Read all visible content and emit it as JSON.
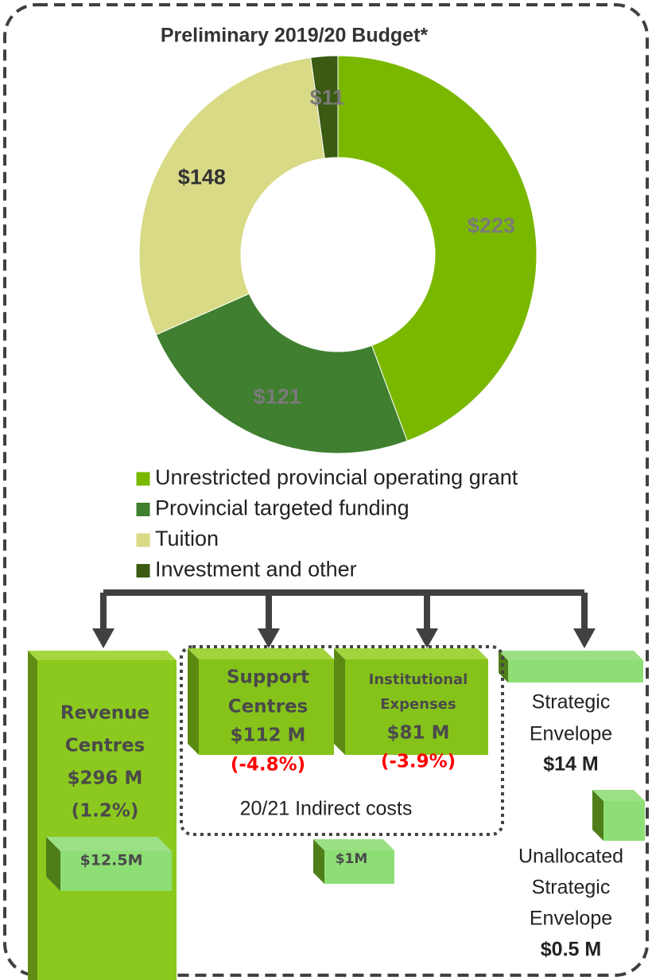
{
  "chart_data": {
    "type": "pie",
    "donut": true,
    "title": "Preliminary 2019/20 Budget*",
    "categories": [
      "Unrestricted provincial operating grant",
      "Provincial targeted funding",
      "Tuition",
      "Investment and other"
    ],
    "values": [
      223,
      121,
      148,
      11
    ],
    "value_labels": [
      "$223",
      "$121",
      "$148",
      "$11"
    ],
    "colors": [
      "#7ab800",
      "#3f7f2f",
      "#d8da86",
      "#3b5a12"
    ],
    "legend": "bottom"
  },
  "diagram": {
    "revenue": {
      "name_lines": [
        "Revenue",
        "Centres"
      ],
      "amount": "$296 M",
      "change": "(1.2%)",
      "sub": "$12.5M"
    },
    "support": {
      "name_lines": [
        "Support",
        "Centres"
      ],
      "amount": "$112 M",
      "change": "(-4.8%)"
    },
    "institutional": {
      "name_lines": [
        "Institutional",
        "Expenses"
      ],
      "amount": "$81 M",
      "change": "(-3.9%)",
      "sub": "$1M"
    },
    "indirect_label": "20/21 Indirect costs",
    "strategic": {
      "name_lines": [
        "Strategic",
        "Envelope"
      ],
      "amount": "$14 M"
    },
    "unallocated": {
      "name_lines": [
        "Unallocated",
        "Strategic",
        "Envelope"
      ],
      "amount": "$0.5 M"
    }
  }
}
